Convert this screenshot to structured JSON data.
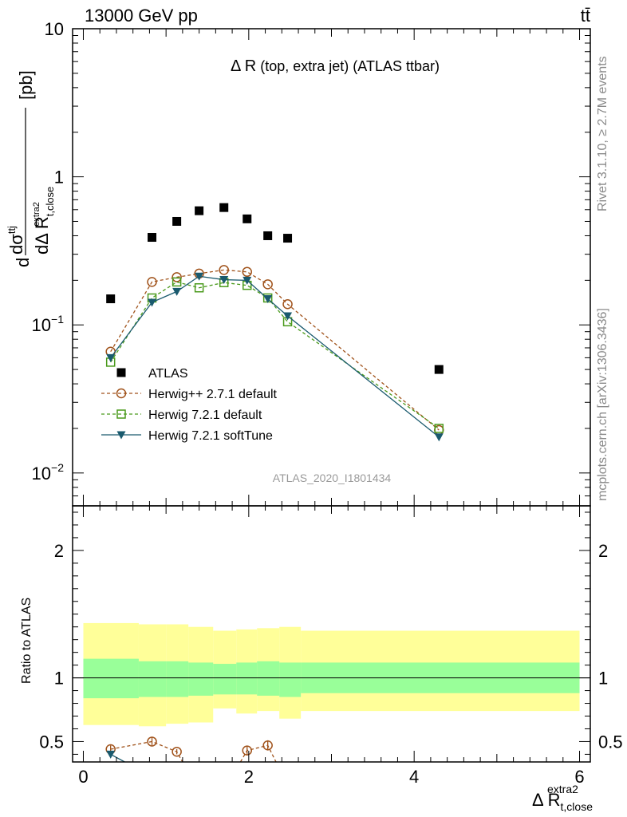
{
  "header": {
    "left": "13000 GeV pp",
    "right": "tt̄"
  },
  "side_labels": {
    "rivet": "Rivet 3.1.10, ≥ 2.7M events",
    "mcplots": "mcplots.cern.ch [arXiv:1306.3436]"
  },
  "chart_data": [
    {
      "type": "scatter",
      "title": "Δ R (top, extra jet) (ATLAS ttbar)",
      "title_main": "Δ R",
      "title_paren": "(top, extra jet) (ATLAS ttbar)",
      "ylabel": "dσ/dΔR [pb]",
      "ylabel_parts": {
        "num": "dσ",
        "num_sup": "ttj",
        "den": "dΔ R",
        "den_sub": "t,close",
        "den_sup": "extra2",
        "unit": "[pb]"
      },
      "yscale": "log",
      "ylim": [
        0.006,
        10
      ],
      "xlim": [
        -0.13,
        6.13
      ],
      "y_ticks": [
        {
          "value": 0.01,
          "base": "10",
          "exp": "−2"
        },
        {
          "value": 0.1,
          "base": "10",
          "exp": "−1"
        },
        {
          "value": 1,
          "base": "1",
          "exp": ""
        },
        {
          "value": 10,
          "base": "10",
          "exp": ""
        }
      ],
      "analysis_id": "ATLAS_2020_I1801434",
      "legend_position": "lower-left",
      "series": [
        {
          "name": "ATLAS",
          "color": "#000000",
          "marker": "square-filled",
          "line": "none",
          "x": [
            0.33,
            0.83,
            1.13,
            1.4,
            1.7,
            1.98,
            2.23,
            2.47,
            4.3
          ],
          "y": [
            0.15,
            0.39,
            0.5,
            0.59,
            0.62,
            0.52,
            0.4,
            0.385,
            0.05
          ]
        },
        {
          "name": "Herwig++ 2.7.1 default",
          "color": "#a0521a",
          "marker": "circle-open",
          "line": "dashed",
          "x": [
            0.33,
            0.83,
            1.13,
            1.4,
            1.7,
            1.98,
            2.23,
            2.47,
            4.3
          ],
          "y": [
            0.066,
            0.195,
            0.21,
            0.222,
            0.235,
            0.228,
            0.188,
            0.138,
            0.0195
          ]
        },
        {
          "name": "Herwig 7.2.1 default",
          "color": "#4a9a1c",
          "marker": "square-open",
          "line": "dashed",
          "x": [
            0.33,
            0.83,
            1.13,
            1.4,
            1.7,
            1.98,
            2.23,
            2.47,
            4.3
          ],
          "y": [
            0.056,
            0.152,
            0.195,
            0.178,
            0.193,
            0.185,
            0.152,
            0.105,
            0.02
          ]
        },
        {
          "name": "Herwig 7.2.1 softTune",
          "color": "#1a5a6e",
          "marker": "triangle-down-filled",
          "line": "solid",
          "x": [
            0.33,
            0.83,
            1.13,
            1.4,
            1.7,
            1.98,
            2.23,
            2.47,
            4.3
          ],
          "y": [
            0.06,
            0.142,
            0.168,
            0.213,
            0.202,
            0.2,
            0.15,
            0.115,
            0.0175
          ]
        }
      ]
    },
    {
      "type": "scatter",
      "ylabel": "Ratio to ATLAS",
      "xlabel": "Δ R",
      "xlabel_sub": "t,close",
      "xlabel_sup": "extra2",
      "ylim": [
        0.34,
        2.35
      ],
      "xlim": [
        -0.13,
        6.13
      ],
      "x_ticks": [
        0,
        2,
        4,
        6
      ],
      "y_ticks": [
        0.5,
        1,
        2
      ],
      "reference_line": 1,
      "bands": {
        "edges": [
          0.0,
          0.67,
          1.0,
          1.27,
          1.57,
          1.85,
          2.1,
          2.37,
          2.63,
          6.0
        ],
        "inner_low": [
          0.84,
          0.85,
          0.85,
          0.86,
          0.87,
          0.87,
          0.86,
          0.85,
          0.88
        ],
        "inner_high": [
          1.15,
          1.13,
          1.13,
          1.12,
          1.11,
          1.12,
          1.13,
          1.12,
          1.12
        ],
        "outer_low": [
          0.63,
          0.62,
          0.64,
          0.65,
          0.76,
          0.72,
          0.74,
          0.68,
          0.74
        ],
        "outer_high": [
          1.43,
          1.42,
          1.42,
          1.4,
          1.37,
          1.38,
          1.39,
          1.4,
          1.37
        ],
        "inner_color": "#99ff99",
        "outer_color": "#ffff99"
      },
      "series": [
        {
          "name": "Herwig++ 2.7.1 default",
          "color": "#a0521a",
          "marker": "circle-open",
          "line": "dashed",
          "x": [
            0.33,
            0.83,
            1.13,
            1.98,
            2.23
          ],
          "y": [
            0.44,
            0.5,
            0.42,
            0.43,
            0.47
          ],
          "err": [
            0.03,
            0.03,
            0.02,
            0.03,
            0.04
          ],
          "segments": [
            [
              [
                0.33,
                0.44
              ],
              [
                0.83,
                0.5
              ],
              [
                1.13,
                0.42
              ],
              [
                1.2,
                0.34
              ]
            ],
            [
              [
                1.9,
                0.34
              ],
              [
                1.98,
                0.43
              ],
              [
                2.23,
                0.47
              ],
              [
                2.33,
                0.34
              ]
            ]
          ]
        },
        {
          "name": "Herwig 7.2.1 softTune",
          "color": "#1a5a6e",
          "marker": "triangle-down-filled",
          "line": "solid",
          "x": [
            0.33
          ],
          "y": [
            0.4
          ],
          "err": [
            0.0
          ],
          "segments": [
            [
              [
                0.33,
                0.4
              ],
              [
                0.5,
                0.34
              ]
            ]
          ]
        }
      ]
    }
  ]
}
